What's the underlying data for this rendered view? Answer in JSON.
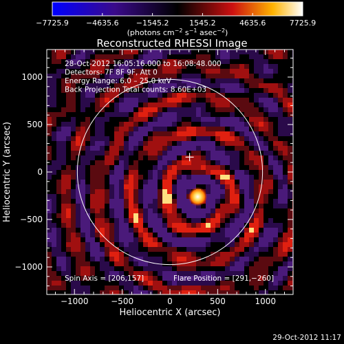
{
  "colorbar": {
    "tick_labels": [
      "−7725.9",
      "−4635.6",
      "−1545.2",
      "1545.2",
      "4635.6",
      "7725.9"
    ],
    "tick_values": [
      -7725.9,
      -4635.6,
      -1545.2,
      1545.2,
      4635.6,
      7725.9
    ],
    "range": [
      -7725.9,
      7725.9
    ],
    "units_text": "(photons cm",
    "units_sup1": "−2",
    "units_mid": " s",
    "units_sup2": "−1",
    "units_mid2": " asec",
    "units_sup3": "−2",
    "units_end": ")"
  },
  "info_lines": [
    "28-Oct-2012 16:05:16.000 to 16:08:48.000",
    "Detectors: 7F 8F 9F, Att 0",
    "Energy Range: 6.0 – 25.0 keV",
    "Back Projection     Total counts: 8.60E+03"
  ],
  "footer": {
    "spin_axis": "Spin Axis = [206,157]",
    "flare_position": "Flare Position = [291,−260]",
    "timestamp": "29-Oct-2012 11:17"
  },
  "chart_data": {
    "type": "heatmap",
    "title": "Reconstructed RHESSI Image",
    "xlabel": "Heliocentric X (arcsec)",
    "ylabel": "Heliocentric Y (arcsec)",
    "xlim": [
      -1290,
      1290
    ],
    "ylim": [
      -1290,
      1290
    ],
    "x_ticks": [
      -1000,
      -500,
      0,
      500,
      1000
    ],
    "x_tick_labels": [
      "−1000",
      "−500",
      "0",
      "500",
      "1000"
    ],
    "y_ticks": [
      1000,
      500,
      0,
      -500,
      -1000
    ],
    "y_tick_labels": [
      "1000",
      "500",
      "0",
      "−500",
      "−1000"
    ],
    "colormap": [
      "#0000ff",
      "#4b0082",
      "#000000",
      "#cc1111",
      "#ffcc00",
      "#ffffff"
    ],
    "solar_limb_radius": 970,
    "sun_center_marker": [
      206,
      157
    ],
    "flare_position": [
      291,
      -260
    ],
    "grid": false
  }
}
